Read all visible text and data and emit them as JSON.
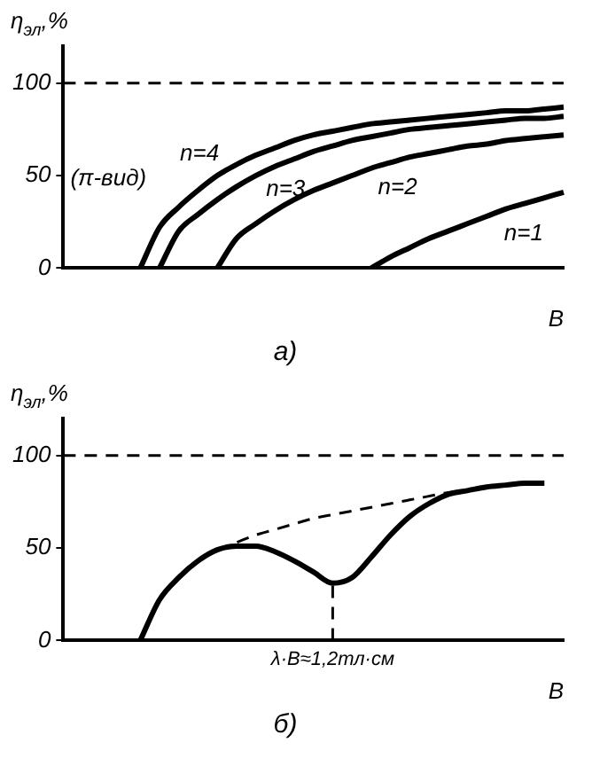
{
  "chart_data": [
    {
      "type": "line",
      "title": "а)",
      "xlabel": "B",
      "ylabel": "η$_{эл}$,%",
      "annotations": [
        "(π-вид)"
      ],
      "categories": [
        null,
        null,
        null,
        null,
        null,
        null,
        null,
        null,
        null,
        null,
        null,
        null,
        null,
        null,
        null,
        null,
        null,
        null,
        null,
        null,
        null,
        null,
        null,
        null,
        null,
        null,
        null
      ],
      "series": [
        {
          "name": "n=4",
          "color": "#000000",
          "values": [
            null,
            null,
            null,
            null,
            0,
            22,
            33,
            42,
            50,
            56,
            61,
            65,
            69,
            72,
            74,
            76,
            78,
            79,
            80,
            81,
            82,
            83,
            84,
            85,
            85,
            86,
            87
          ]
        },
        {
          "name": "n=3",
          "color": "#000000",
          "values": [
            null,
            null,
            null,
            null,
            null,
            0,
            20,
            29,
            37,
            44,
            50,
            55,
            59,
            63,
            66,
            69,
            71,
            73,
            75,
            76,
            77,
            78,
            79,
            80,
            81,
            81,
            82
          ]
        },
        {
          "name": "n=2",
          "color": "#000000",
          "values": [
            null,
            null,
            null,
            null,
            null,
            null,
            null,
            null,
            0,
            16,
            24,
            31,
            37,
            42,
            46,
            50,
            54,
            57,
            60,
            62,
            64,
            66,
            67,
            69,
            70,
            71,
            72
          ]
        },
        {
          "name": "n=1",
          "color": "#000000",
          "values": [
            null,
            null,
            null,
            null,
            null,
            null,
            null,
            null,
            null,
            null,
            null,
            null,
            null,
            null,
            null,
            null,
            0,
            6,
            11,
            16,
            20,
            24,
            28,
            32,
            35,
            38,
            41
          ]
        }
      ],
      "ylim": [
        0,
        120
      ],
      "yticks": [
        0,
        50,
        100
      ],
      "grid": false,
      "legend": false,
      "marker": "none",
      "line_style": "solid",
      "ref_lines": [
        {
          "axis": "y",
          "value": 100,
          "line_style": "dashed"
        }
      ]
    },
    {
      "type": "line",
      "title": "б)",
      "xlabel": "B",
      "ylabel": "η$_{эл}$,%",
      "categories": [
        null,
        null,
        null,
        null,
        null,
        null,
        null,
        null,
        null,
        null,
        null,
        null,
        null,
        null,
        "λ·B≈1,2тл·см",
        null,
        null,
        null,
        null,
        null,
        null,
        null,
        null,
        null,
        null,
        null,
        null
      ],
      "series": [
        {
          "color": "#000000",
          "values": [
            null,
            null,
            null,
            null,
            0,
            22,
            34,
            43,
            49,
            51,
            51,
            48,
            43,
            37,
            31,
            34,
            45,
            57,
            67,
            74,
            79,
            81,
            83,
            84,
            85,
            85,
            null
          ]
        },
        {
          "color": "#000000",
          "line_style": "dashed",
          "values": [
            null,
            null,
            null,
            null,
            null,
            null,
            null,
            null,
            49,
            53,
            57,
            60,
            63,
            66,
            68,
            70,
            72,
            74,
            76,
            78,
            80,
            81,
            null,
            null,
            null,
            null,
            null
          ]
        }
      ],
      "ylim": [
        0,
        120
      ],
      "yticks": [
        0,
        50,
        100
      ],
      "grid": false,
      "legend": false,
      "marker": "none",
      "line_style": "solid",
      "ref_lines": [
        {
          "axis": "y",
          "value": 100,
          "line_style": "dashed"
        },
        {
          "axis": "x",
          "value": "λ·B≈1,2тл·см",
          "line_style": "dashed"
        }
      ]
    }
  ]
}
